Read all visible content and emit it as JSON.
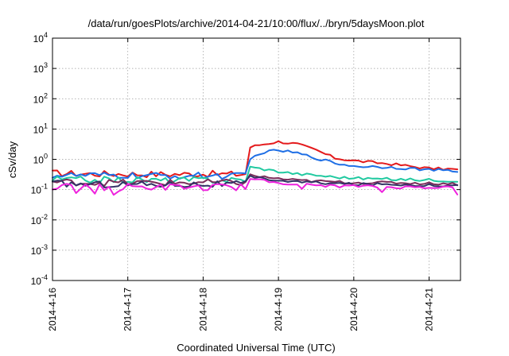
{
  "chart_data": {
    "type": "line",
    "title": "/data/run/goesPlots/archive/2014-04-21/10:00/flux/../bryn/5daysMoon.plot",
    "xlabel": "Coordinated Universal Time (UTC)",
    "ylabel": "cSv/day",
    "y_scale": "log",
    "ylim": [
      0.0001,
      10000
    ],
    "y_ticks": [
      {
        "value": 0.0001,
        "base": "10",
        "exp": "-4"
      },
      {
        "value": 0.001,
        "base": "10",
        "exp": "-3"
      },
      {
        "value": 0.01,
        "base": "10",
        "exp": "-2"
      },
      {
        "value": 0.1,
        "base": "10",
        "exp": "-1"
      },
      {
        "value": 1,
        "base": "10",
        "exp": "0"
      },
      {
        "value": 10,
        "base": "10",
        "exp": "1"
      },
      {
        "value": 100,
        "base": "10",
        "exp": "2"
      },
      {
        "value": 1000,
        "base": "10",
        "exp": "3"
      },
      {
        "value": 10000,
        "base": "10",
        "exp": "4"
      }
    ],
    "xlim": [
      "2014-04-16T00:00",
      "2014-04-21T10:00"
    ],
    "x_ticks": [
      "2014-4-16",
      "2014-4-17",
      "2014-4-18",
      "2014-4-19",
      "2014-4-20",
      "2014-4-21"
    ],
    "grid": true,
    "legend": "none",
    "series": [
      {
        "color": "#e41a1c",
        "x": [
          "2014-04-16T00:00",
          "2014-04-16T12:00",
          "2014-04-17T00:00",
          "2014-04-17T12:00",
          "2014-04-18T00:00",
          "2014-04-18T12:00",
          "2014-04-18T14:00",
          "2014-04-18T15:00",
          "2014-04-18T18:00",
          "2014-04-19T00:00",
          "2014-04-19T06:00",
          "2014-04-19T12:00",
          "2014-04-19T18:00",
          "2014-04-20T00:00",
          "2014-04-20T12:00",
          "2014-04-21T00:00",
          "2014-04-21T06:00",
          "2014-04-21T10:00"
        ],
        "values": [
          0.35,
          0.33,
          0.33,
          0.32,
          0.33,
          0.32,
          0.34,
          2.5,
          3.0,
          3.8,
          3.2,
          2.0,
          1.1,
          0.9,
          0.7,
          0.5,
          0.48,
          0.45
        ]
      },
      {
        "color": "#1f6fe5",
        "x": [
          "2014-04-16T00:00",
          "2014-04-16T12:00",
          "2014-04-17T00:00",
          "2014-04-17T12:00",
          "2014-04-18T00:00",
          "2014-04-18T12:00",
          "2014-04-18T14:00",
          "2014-04-18T15:00",
          "2014-04-18T18:00",
          "2014-04-19T00:00",
          "2014-04-19T06:00",
          "2014-04-19T12:00",
          "2014-04-19T18:00",
          "2014-04-20T00:00",
          "2014-04-20T12:00",
          "2014-04-21T00:00",
          "2014-04-21T06:00",
          "2014-04-21T10:00"
        ],
        "values": [
          0.3,
          0.29,
          0.29,
          0.28,
          0.29,
          0.28,
          0.3,
          1.0,
          1.6,
          2.0,
          1.6,
          1.1,
          0.75,
          0.6,
          0.55,
          0.45,
          0.42,
          0.38
        ]
      },
      {
        "color": "#20c9a0",
        "x": [
          "2014-04-16T00:00",
          "2014-04-16T12:00",
          "2014-04-17T00:00",
          "2014-04-17T12:00",
          "2014-04-18T00:00",
          "2014-04-18T12:00",
          "2014-04-18T14:00",
          "2014-04-18T15:00",
          "2014-04-18T18:00",
          "2014-04-19T00:00",
          "2014-04-19T06:00",
          "2014-04-19T12:00",
          "2014-04-19T18:00",
          "2014-04-20T00:00",
          "2014-04-20T12:00",
          "2014-04-21T00:00",
          "2014-04-21T06:00",
          "2014-04-21T10:00"
        ],
        "values": [
          0.22,
          0.21,
          0.21,
          0.2,
          0.21,
          0.21,
          0.22,
          0.55,
          0.5,
          0.4,
          0.33,
          0.3,
          0.26,
          0.24,
          0.22,
          0.21,
          0.2,
          0.19
        ]
      },
      {
        "color": "#7b2d5a",
        "x": [
          "2014-04-16T00:00",
          "2014-04-16T12:00",
          "2014-04-17T00:00",
          "2014-04-17T12:00",
          "2014-04-18T00:00",
          "2014-04-18T12:00",
          "2014-04-18T14:00",
          "2014-04-18T15:00",
          "2014-04-18T18:00",
          "2014-04-19T00:00",
          "2014-04-19T06:00",
          "2014-04-19T12:00",
          "2014-04-19T18:00",
          "2014-04-20T00:00",
          "2014-04-20T12:00",
          "2014-04-21T00:00",
          "2014-04-21T06:00",
          "2014-04-21T10:00"
        ],
        "values": [
          0.18,
          0.17,
          0.17,
          0.17,
          0.17,
          0.17,
          0.18,
          0.3,
          0.27,
          0.23,
          0.2,
          0.19,
          0.18,
          0.17,
          0.17,
          0.16,
          0.16,
          0.15
        ]
      },
      {
        "color": "#333366",
        "x": [
          "2014-04-16T00:00",
          "2014-04-16T12:00",
          "2014-04-17T00:00",
          "2014-04-17T12:00",
          "2014-04-18T00:00",
          "2014-04-18T12:00",
          "2014-04-18T14:00",
          "2014-04-18T15:00",
          "2014-04-18T18:00",
          "2014-04-19T00:00",
          "2014-04-19T06:00",
          "2014-04-19T12:00",
          "2014-04-19T18:00",
          "2014-04-20T00:00",
          "2014-04-20T12:00",
          "2014-04-21T00:00",
          "2014-04-21T06:00",
          "2014-04-21T10:00"
        ],
        "values": [
          0.16,
          0.15,
          0.15,
          0.15,
          0.15,
          0.15,
          0.16,
          0.26,
          0.24,
          0.2,
          0.18,
          0.17,
          0.16,
          0.15,
          0.15,
          0.14,
          0.14,
          0.13
        ]
      },
      {
        "color": "#ee22dd",
        "x": [
          "2014-04-16T00:00",
          "2014-04-16T12:00",
          "2014-04-17T00:00",
          "2014-04-17T12:00",
          "2014-04-18T00:00",
          "2014-04-18T12:00",
          "2014-04-18T14:00",
          "2014-04-18T15:00",
          "2014-04-18T18:00",
          "2014-04-19T00:00",
          "2014-04-19T06:00",
          "2014-04-19T12:00",
          "2014-04-19T18:00",
          "2014-04-20T00:00",
          "2014-04-20T12:00",
          "2014-04-21T00:00",
          "2014-04-21T06:00",
          "2014-04-21T10:00"
        ],
        "values": [
          0.13,
          0.12,
          0.12,
          0.12,
          0.12,
          0.12,
          0.13,
          0.22,
          0.2,
          0.17,
          0.15,
          0.14,
          0.13,
          0.13,
          0.12,
          0.12,
          0.12,
          0.11
        ]
      }
    ]
  }
}
